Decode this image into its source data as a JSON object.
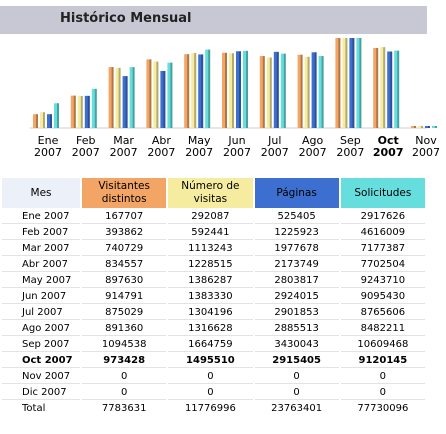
{
  "title": "Histórico Mensual",
  "colors": {
    "visitors": "#f3a565",
    "visits": "#f5eca0",
    "pages": "#3d6fd0",
    "requests": "#66dede",
    "title_bar": "#c8c8d4",
    "header_mes": "#ecf0f8"
  },
  "months": [
    {
      "m": "Ene",
      "y": "2007",
      "bold": false
    },
    {
      "m": "Feb",
      "y": "2007",
      "bold": false
    },
    {
      "m": "Mar",
      "y": "2007",
      "bold": false
    },
    {
      "m": "Abr",
      "y": "2007",
      "bold": false
    },
    {
      "m": "May",
      "y": "2007",
      "bold": false
    },
    {
      "m": "Jun",
      "y": "2007",
      "bold": false
    },
    {
      "m": "Jul",
      "y": "2007",
      "bold": false
    },
    {
      "m": "Ago",
      "y": "2007",
      "bold": false
    },
    {
      "m": "Sep",
      "y": "2007",
      "bold": false
    },
    {
      "m": "Oct",
      "y": "2007",
      "bold": true
    },
    {
      "m": "Nov",
      "y": "2007",
      "bold": false
    }
  ],
  "table": {
    "headers": [
      "Mes",
      "Visitantes distintos",
      "Número de visitas",
      "Páginas",
      "Solicitudes"
    ],
    "rows": [
      {
        "mes": "Ene 2007",
        "visitors": "167707",
        "visits": "292087",
        "pages": "525405",
        "requests": "2917626",
        "bold": false
      },
      {
        "mes": "Feb 2007",
        "visitors": "393862",
        "visits": "592441",
        "pages": "1225923",
        "requests": "4616009",
        "bold": false
      },
      {
        "mes": "Mar 2007",
        "visitors": "740729",
        "visits": "1113243",
        "pages": "1977678",
        "requests": "7177387",
        "bold": false
      },
      {
        "mes": "Abr 2007",
        "visitors": "834557",
        "visits": "1228515",
        "pages": "2173749",
        "requests": "7702504",
        "bold": false
      },
      {
        "mes": "May 2007",
        "visitors": "897630",
        "visits": "1386287",
        "pages": "2803817",
        "requests": "9243710",
        "bold": false
      },
      {
        "mes": "Jun 2007",
        "visitors": "914791",
        "visits": "1383330",
        "pages": "2924015",
        "requests": "9095430",
        "bold": false
      },
      {
        "mes": "Jul 2007",
        "visitors": "875029",
        "visits": "1304196",
        "pages": "2901853",
        "requests": "8765606",
        "bold": false
      },
      {
        "mes": "Ago 2007",
        "visitors": "891360",
        "visits": "1316628",
        "pages": "2885513",
        "requests": "8482211",
        "bold": false
      },
      {
        "mes": "Sep 2007",
        "visitors": "1094538",
        "visits": "1664759",
        "pages": "3430043",
        "requests": "10609468",
        "bold": false
      },
      {
        "mes": "Oct 2007",
        "visitors": "973428",
        "visits": "1495510",
        "pages": "2915405",
        "requests": "9120145",
        "bold": true
      },
      {
        "mes": "Nov 2007",
        "visitors": "0",
        "visits": "0",
        "pages": "0",
        "requests": "0",
        "bold": false
      },
      {
        "mes": "Dic 2007",
        "visitors": "0",
        "visits": "0",
        "pages": "0",
        "requests": "0",
        "bold": false
      }
    ],
    "total": {
      "mes": "Total",
      "visitors": "7783631",
      "visits": "11776996",
      "pages": "23763401",
      "requests": "77730096"
    }
  },
  "chart_data": {
    "type": "bar",
    "categories": [
      "Ene 2007",
      "Feb 2007",
      "Mar 2007",
      "Abr 2007",
      "May 2007",
      "Jun 2007",
      "Jul 2007",
      "Ago 2007",
      "Sep 2007",
      "Oct 2007",
      "Nov 2007"
    ],
    "series": [
      {
        "name": "Visitantes distintos",
        "values": [
          167707,
          393862,
          740729,
          834557,
          897630,
          914791,
          875029,
          891360,
          1094538,
          973428,
          0
        ]
      },
      {
        "name": "Número de visitas",
        "values": [
          292087,
          592441,
          1113243,
          1228515,
          1386287,
          1383330,
          1304196,
          1316628,
          1664759,
          1495510,
          0
        ]
      },
      {
        "name": "Páginas",
        "values": [
          525405,
          1225923,
          1977678,
          2173749,
          2803817,
          2924015,
          2901853,
          2885513,
          3430043,
          2915405,
          0
        ]
      },
      {
        "name": "Solicitudes",
        "values": [
          2917626,
          4616009,
          7177387,
          7702504,
          9243710,
          9095430,
          8765606,
          8482211,
          10609468,
          9120145,
          0
        ]
      }
    ]
  }
}
